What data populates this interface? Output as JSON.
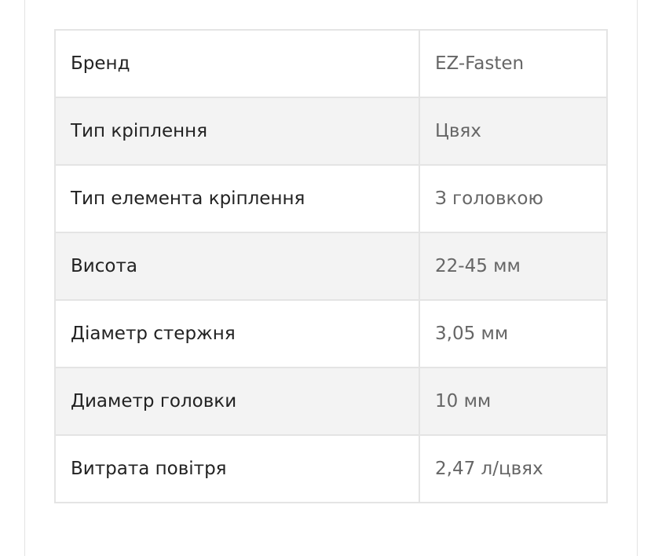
{
  "specs": [
    {
      "label": "Бренд",
      "value": "EZ-Fasten"
    },
    {
      "label": "Тип кріплення",
      "value": "Цвях"
    },
    {
      "label": "Тип елемента кріплення",
      "value": "З головкою"
    },
    {
      "label": "Висота",
      "value": "22-45 мм"
    },
    {
      "label": "Діаметр стержня",
      "value": "3,05 мм"
    },
    {
      "label": "Диаметр головки",
      "value": "10 мм"
    },
    {
      "label": "Витрата повітря",
      "value": "2,47 л/цвях"
    }
  ]
}
